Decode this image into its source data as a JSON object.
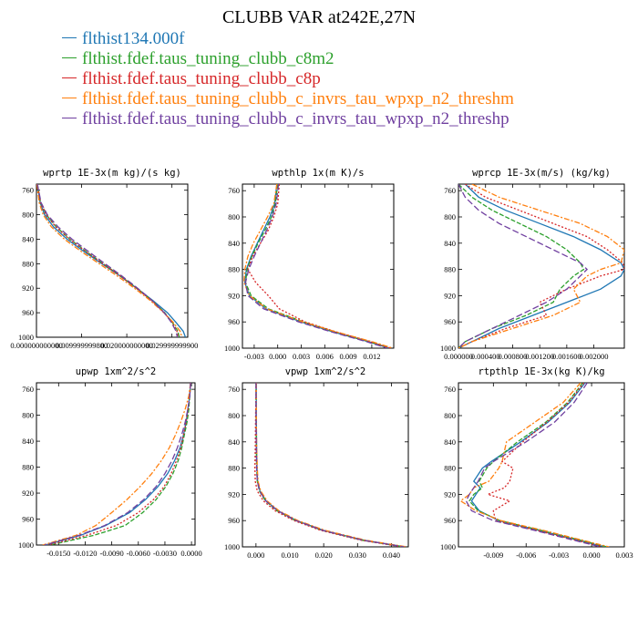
{
  "title": "CLUBB VAR at242E,27N",
  "legend": [
    {
      "label": "flthist134.000f",
      "color": "#1f77b4"
    },
    {
      "label": "flthist.fdef.taus_tuning_clubb_c8m2",
      "color": "#2ca02c"
    },
    {
      "label": "flthist.fdef.taus_tuning_clubb_c8p",
      "color": "#d62728"
    },
    {
      "label": "flthist.fdef.taus_tuning_clubb_c_invrs_tau_wpxp_n2_threshm",
      "color": "#ff7f0e"
    },
    {
      "label": "flthist.fdef.taus_tuning_clubb_c_invrs_tau_wpxp_n2_threshp",
      "color": "#7040a0"
    }
  ],
  "chart_data": [
    {
      "type": "line",
      "title": "wprtp  1E-3x(m kg)/(s kg)",
      "ylim": [
        1000,
        750
      ],
      "yticks": [
        760,
        800,
        840,
        880,
        920,
        960,
        1000
      ],
      "xlim": [
        0.0,
        0.0335
      ],
      "xticks": [
        0.0,
        0.01,
        0.02,
        0.03
      ],
      "xtick_labels": [
        "0.000000000000",
        "0.009999999800",
        "0.020000000000",
        "0.029999999900"
      ],
      "y": [
        750,
        780,
        800,
        820,
        840,
        860,
        880,
        900,
        920,
        940,
        960,
        975,
        990,
        1000
      ],
      "series": [
        {
          "values": [
            0.0002,
            0.0008,
            0.0018,
            0.0038,
            0.0068,
            0.0105,
            0.0145,
            0.0185,
            0.0222,
            0.0258,
            0.029,
            0.0308,
            0.0325,
            0.033
          ],
          "color": "#1f77b4",
          "dash": ""
        },
        {
          "values": [
            0.0002,
            0.0009,
            0.0022,
            0.0044,
            0.0074,
            0.011,
            0.0148,
            0.0186,
            0.0222,
            0.0256,
            0.0284,
            0.03,
            0.0313,
            0.0316
          ],
          "color": "#2ca02c",
          "dash": "5,2"
        },
        {
          "values": [
            0.0002,
            0.0009,
            0.0021,
            0.0043,
            0.0073,
            0.0109,
            0.0147,
            0.0185,
            0.0221,
            0.0255,
            0.0283,
            0.0299,
            0.0311,
            0.0314
          ],
          "color": "#d62728",
          "dash": "2,2"
        },
        {
          "values": [
            0.0001,
            0.0006,
            0.0015,
            0.0033,
            0.0062,
            0.0099,
            0.0139,
            0.0179,
            0.0217,
            0.0252,
            0.0282,
            0.0302,
            0.0318,
            0.0322
          ],
          "color": "#ff7f0e",
          "dash": "6,2,2,2"
        },
        {
          "values": [
            0.0002,
            0.001,
            0.0024,
            0.0048,
            0.0079,
            0.0115,
            0.0152,
            0.0189,
            0.0224,
            0.0256,
            0.0283,
            0.0298,
            0.0309,
            0.0312
          ],
          "color": "#7040a0",
          "dash": "7,3"
        }
      ]
    },
    {
      "type": "line",
      "title": "wpthlp  1x(m K)/s",
      "ylim": [
        1000,
        750
      ],
      "yticks": [
        760,
        800,
        840,
        880,
        920,
        960,
        1000
      ],
      "xlim": [
        -0.0045,
        0.0148
      ],
      "xticks": [
        -0.003,
        0.0,
        0.003,
        0.006,
        0.009,
        0.012
      ],
      "xtick_labels": [
        "-0.003",
        "0.000",
        "0.003",
        "0.006",
        "0.009",
        "0.012"
      ],
      "y": [
        750,
        780,
        800,
        820,
        840,
        860,
        880,
        900,
        920,
        940,
        960,
        975,
        990,
        1000
      ],
      "series": [
        {
          "values": [
            -0.0001,
            -0.0004,
            -0.001,
            -0.0018,
            -0.0026,
            -0.0034,
            -0.004,
            -0.0042,
            -0.0036,
            -0.0015,
            0.003,
            0.007,
            0.0115,
            0.0142
          ],
          "color": "#1f77b4",
          "dash": ""
        },
        {
          "values": [
            0.0,
            -0.0003,
            -0.0008,
            -0.0016,
            -0.0025,
            -0.0033,
            -0.0039,
            -0.0041,
            -0.0034,
            -0.0012,
            0.0033,
            0.0072,
            0.0116,
            0.0143
          ],
          "color": "#2ca02c",
          "dash": "5,2"
        },
        {
          "values": [
            0.0002,
            0.0,
            -0.0005,
            -0.0012,
            -0.0022,
            -0.0032,
            -0.0038,
            -0.0028,
            -0.0012,
            0.0002,
            0.0035,
            0.0074,
            0.0118,
            0.0144
          ],
          "color": "#d62728",
          "dash": "2,2"
        },
        {
          "values": [
            -0.0001,
            -0.0005,
            -0.0013,
            -0.0022,
            -0.0031,
            -0.0038,
            -0.0042,
            -0.0043,
            -0.0036,
            -0.0014,
            0.0032,
            0.0074,
            0.012,
            0.0147
          ],
          "color": "#ff7f0e",
          "dash": "6,2,2,2"
        },
        {
          "values": [
            0.0001,
            -0.0002,
            -0.0007,
            -0.0014,
            -0.0022,
            -0.003,
            -0.0037,
            -0.0041,
            -0.0038,
            -0.0018,
            0.0027,
            0.0068,
            0.0113,
            0.014
          ],
          "color": "#7040a0",
          "dash": "7,3"
        }
      ]
    },
    {
      "type": "line",
      "title": "wprcp  1E-3x(m/s) (kg/kg)",
      "ylim": [
        1000,
        750
      ],
      "yticks": [
        760,
        800,
        840,
        880,
        920,
        960,
        1000
      ],
      "xlim": [
        0.0,
        0.00245
      ],
      "xticks": [
        0.0,
        0.0004,
        0.0008,
        0.0012,
        0.0016,
        0.002
      ],
      "xtick_labels": [
        "0.000000",
        "0.000400",
        "0.000800",
        "0.001200",
        "0.001600",
        "0.002000"
      ],
      "y": [
        750,
        770,
        790,
        810,
        830,
        850,
        870,
        880,
        890,
        910,
        930,
        950,
        970,
        990,
        1000
      ],
      "series": [
        {
          "values": [
            0.0001,
            0.0003,
            0.0007,
            0.0012,
            0.0017,
            0.0021,
            0.0024,
            0.00245,
            0.0024,
            0.0021,
            0.0016,
            0.0011,
            0.0006,
            0.0002,
            0.0
          ],
          "color": "#1f77b4",
          "dash": ""
        },
        {
          "values": [
            0.0,
            0.0002,
            0.0005,
            0.0009,
            0.0013,
            0.0016,
            0.0018,
            0.00185,
            0.0017,
            0.0015,
            0.0014,
            0.001,
            0.0005,
            0.0001,
            0.0
          ],
          "color": "#2ca02c",
          "dash": "5,2"
        },
        {
          "values": [
            0.0001,
            0.0004,
            0.0009,
            0.0014,
            0.0019,
            0.0022,
            0.00243,
            0.00245,
            0.0021,
            0.0016,
            0.0012,
            0.0013,
            0.0007,
            0.0002,
            0.0
          ],
          "color": "#d62728",
          "dash": "2,2"
        },
        {
          "values": [
            0.0002,
            0.0006,
            0.0012,
            0.0018,
            0.0022,
            0.00245,
            0.0024,
            0.0021,
            0.0019,
            0.0017,
            0.0018,
            0.0014,
            0.0008,
            0.0002,
            0.0
          ],
          "color": "#ff7f0e",
          "dash": "6,2,2,2"
        },
        {
          "values": [
            0.0,
            0.0001,
            0.0003,
            0.0006,
            0.001,
            0.0014,
            0.0018,
            0.0019,
            0.0018,
            0.0016,
            0.0013,
            0.0009,
            0.0005,
            0.0001,
            0.0
          ],
          "color": "#7040a0",
          "dash": "7,3"
        }
      ]
    },
    {
      "type": "line",
      "title": "upwp  1xm^2/s^2",
      "ylim": [
        1000,
        750
      ],
      "yticks": [
        760,
        800,
        840,
        880,
        920,
        960,
        1000
      ],
      "xlim": [
        -0.0175,
        0.0004
      ],
      "xticks": [
        -0.015,
        -0.012,
        -0.009,
        -0.006,
        -0.003,
        0.0
      ],
      "xtick_labels": [
        "-0.0150",
        "-0.0120",
        "-0.0090",
        "-0.0060",
        "-0.0030",
        "0.0000"
      ],
      "y": [
        750,
        770,
        790,
        810,
        830,
        850,
        870,
        890,
        910,
        930,
        950,
        970,
        985,
        1000
      ],
      "series": [
        {
          "values": [
            -0.0001,
            -0.0002,
            -0.0004,
            -0.0006,
            -0.0009,
            -0.0013,
            -0.0019,
            -0.0027,
            -0.0038,
            -0.0052,
            -0.007,
            -0.0097,
            -0.0125,
            -0.0165
          ],
          "color": "#1f77b4",
          "dash": ""
        },
        {
          "values": [
            -0.0001,
            -0.0002,
            -0.0003,
            -0.0005,
            -0.0008,
            -0.0011,
            -0.0015,
            -0.0021,
            -0.0029,
            -0.004,
            -0.0055,
            -0.0075,
            -0.011,
            -0.016
          ],
          "color": "#2ca02c",
          "dash": "5,2"
        },
        {
          "values": [
            -0.0001,
            -0.0002,
            -0.0004,
            -0.0006,
            -0.0009,
            -0.0012,
            -0.0017,
            -0.0023,
            -0.0031,
            -0.0043,
            -0.006,
            -0.0085,
            -0.0118,
            -0.0162
          ],
          "color": "#d62728",
          "dash": "2,2"
        },
        {
          "values": [
            -0.0001,
            -0.0003,
            -0.0007,
            -0.0012,
            -0.0018,
            -0.0025,
            -0.0034,
            -0.0045,
            -0.0058,
            -0.0073,
            -0.009,
            -0.0108,
            -0.013,
            -0.0168
          ],
          "color": "#ff7f0e",
          "dash": "6,2,2,2"
        },
        {
          "values": [
            -0.0001,
            -0.0002,
            -0.0004,
            -0.0007,
            -0.0011,
            -0.0016,
            -0.0022,
            -0.003,
            -0.004,
            -0.0054,
            -0.0072,
            -0.0098,
            -0.0127,
            -0.0166
          ],
          "color": "#7040a0",
          "dash": "7,3"
        }
      ]
    },
    {
      "type": "line",
      "title": "vpwp  1xm^2/s^2",
      "ylim": [
        1000,
        750
      ],
      "yticks": [
        760,
        800,
        840,
        880,
        920,
        960,
        1000
      ],
      "xlim": [
        -0.004,
        0.045
      ],
      "xticks": [
        0.0,
        0.01,
        0.02,
        0.03,
        0.04
      ],
      "xtick_labels": [
        "0.000",
        "0.010",
        "0.020",
        "0.030",
        "0.040"
      ],
      "y": [
        750,
        800,
        850,
        880,
        900,
        915,
        930,
        945,
        960,
        975,
        990,
        1000
      ],
      "series": [
        {
          "values": [
            0.0001,
            0.0001,
            0.0002,
            0.0003,
            0.0005,
            0.0012,
            0.003,
            0.0065,
            0.012,
            0.02,
            0.032,
            0.044
          ],
          "color": "#1f77b4",
          "dash": ""
        },
        {
          "values": [
            0.0,
            0.0,
            0.0001,
            0.0002,
            0.0004,
            0.001,
            0.0028,
            0.0062,
            0.0117,
            0.0196,
            0.0315,
            0.0435
          ],
          "color": "#2ca02c",
          "dash": "5,2"
        },
        {
          "values": [
            0.0,
            -0.0001,
            -0.0002,
            -0.0003,
            -0.0002,
            0.0004,
            0.0022,
            0.0057,
            0.0112,
            0.0192,
            0.0312,
            0.0432
          ],
          "color": "#d62728",
          "dash": "2,2"
        },
        {
          "values": [
            0.0001,
            0.0001,
            0.0002,
            0.0004,
            0.0006,
            0.0014,
            0.0033,
            0.0068,
            0.0124,
            0.0205,
            0.0325,
            0.0445
          ],
          "color": "#ff7f0e",
          "dash": "6,2,2,2"
        },
        {
          "values": [
            0.0,
            0.0,
            0.0001,
            0.0002,
            0.0004,
            0.0011,
            0.0029,
            0.0064,
            0.0119,
            0.0198,
            0.0318,
            0.0438
          ],
          "color": "#7040a0",
          "dash": "7,3"
        }
      ]
    },
    {
      "type": "line",
      "title": "rtpthlp  1E-3x(kg K)/kg",
      "ylim": [
        1000,
        750
      ],
      "yticks": [
        760,
        800,
        840,
        880,
        920,
        960,
        1000
      ],
      "xlim": [
        -0.0122,
        0.003
      ],
      "xticks": [
        -0.009,
        -0.006,
        -0.003,
        0.0,
        0.003
      ],
      "xtick_labels": [
        "-0.009",
        "-0.006",
        "-0.003",
        "0.000",
        "0.003"
      ],
      "y": [
        750,
        780,
        810,
        840,
        870,
        880,
        900,
        910,
        920,
        930,
        945,
        960,
        975,
        990,
        1000
      ],
      "series": [
        {
          "values": [
            -0.0006,
            -0.002,
            -0.004,
            -0.0065,
            -0.0092,
            -0.01,
            -0.0108,
            -0.0102,
            -0.0106,
            -0.011,
            -0.0103,
            -0.0085,
            -0.0048,
            -0.0012,
            0.0012
          ],
          "color": "#1f77b4",
          "dash": ""
        },
        {
          "values": [
            -0.0008,
            -0.0022,
            -0.0042,
            -0.0068,
            -0.009,
            -0.0096,
            -0.0103,
            -0.01,
            -0.0108,
            -0.0112,
            -0.0104,
            -0.0084,
            -0.0046,
            -0.001,
            0.0014
          ],
          "color": "#2ca02c",
          "dash": "5,2"
        },
        {
          "values": [
            -0.0007,
            -0.0021,
            -0.0041,
            -0.0063,
            -0.0082,
            -0.0072,
            -0.0075,
            -0.008,
            -0.0095,
            -0.0075,
            -0.009,
            -0.0088,
            -0.005,
            -0.0014,
            0.001
          ],
          "color": "#d62728",
          "dash": "2,2"
        },
        {
          "values": [
            -0.001,
            -0.0026,
            -0.0052,
            -0.0078,
            -0.0082,
            -0.0085,
            -0.0094,
            -0.0108,
            -0.0112,
            -0.012,
            -0.0106,
            -0.0083,
            -0.0044,
            -0.0008,
            0.0016
          ],
          "color": "#ff7f0e",
          "dash": "6,2,2,2"
        },
        {
          "values": [
            -0.0004,
            -0.0016,
            -0.0034,
            -0.006,
            -0.009,
            -0.0098,
            -0.0104,
            -0.0108,
            -0.0112,
            -0.0115,
            -0.011,
            -0.009,
            -0.0052,
            -0.0016,
            0.0008
          ],
          "color": "#7040a0",
          "dash": "7,3"
        }
      ]
    }
  ]
}
